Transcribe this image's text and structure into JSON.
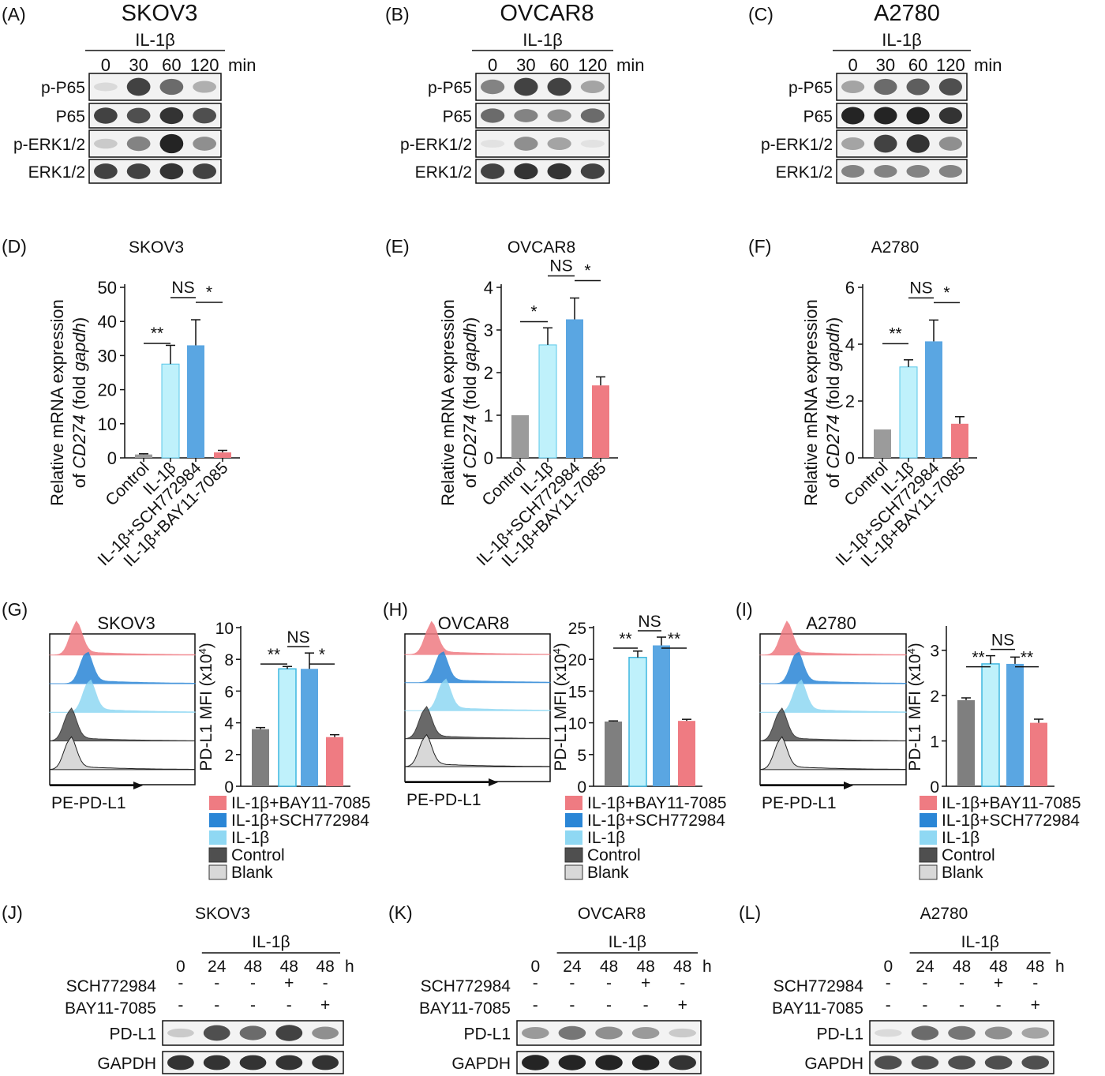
{
  "chart_data": {
    "type": "bar",
    "panel_letters": [
      "(A)",
      "(B)",
      "(C)",
      "(D)",
      "(E)",
      "(F)",
      "(G)",
      "(H)",
      "(I)",
      "(J)",
      "(K)",
      "(L)"
    ],
    "cell_lines": [
      "SKOV3",
      "OVCAR8",
      "A2780"
    ],
    "time_course_blots": {
      "treatment": "IL-1β",
      "timepoints": [
        "0",
        "30",
        "60",
        "120"
      ],
      "unit": "min",
      "rows": [
        "p-P65",
        "P65",
        "p-ERK1/2",
        "ERK1/2"
      ],
      "intensities": {
        "SKOV3": [
          [
            0.15,
            0.85,
            0.7,
            0.4
          ],
          [
            0.85,
            0.8,
            0.9,
            0.8
          ],
          [
            0.25,
            0.6,
            0.95,
            0.55
          ],
          [
            0.85,
            0.85,
            0.9,
            0.85
          ]
        ],
        "OVCAR8": [
          [
            0.6,
            0.85,
            0.85,
            0.45
          ],
          [
            0.7,
            0.6,
            0.55,
            0.7
          ],
          [
            0.1,
            0.55,
            0.45,
            0.1
          ],
          [
            0.85,
            0.9,
            0.9,
            0.85
          ]
        ],
        "A2780": [
          [
            0.45,
            0.7,
            0.75,
            0.8
          ],
          [
            0.95,
            0.95,
            0.95,
            0.9
          ],
          [
            0.45,
            0.85,
            0.9,
            0.55
          ],
          [
            0.6,
            0.6,
            0.6,
            0.6
          ]
        ]
      }
    },
    "mrna_charts": {
      "ylabel_line1": "Relative mRNA expression",
      "ylabel_line2_prefix": "of ",
      "ylabel_line2_gene": "CD274",
      "ylabel_line2_mid": " (fold ",
      "ylabel_line2_ref": "gapdh",
      "ylabel_line2_end": ")",
      "categories": [
        "Control",
        "IL-1β",
        "IL-1β+SCH772984",
        "IL-1β+BAY11-7085"
      ],
      "colors": [
        "#9b9b9b",
        "#bff1fb",
        "#5aa6e2",
        "#ef7b82"
      ],
      "panels": [
        {
          "title": "SKOV3",
          "ylim": [
            0,
            50
          ],
          "yticks": [
            0,
            10,
            20,
            30,
            40,
            50
          ],
          "values": [
            1,
            27.5,
            33,
            1.6
          ],
          "errors": [
            0.2,
            5.5,
            7.5,
            0.6
          ],
          "sig": [
            "**",
            "NS",
            "*"
          ]
        },
        {
          "title": "OVCAR8",
          "ylim": [
            0,
            4
          ],
          "yticks": [
            0,
            1,
            2,
            3,
            4
          ],
          "values": [
            1,
            2.65,
            3.25,
            1.7
          ],
          "errors": [
            0,
            0.4,
            0.5,
            0.2
          ],
          "sig": [
            "*",
            "NS",
            "*"
          ]
        },
        {
          "title": "A2780",
          "ylim": [
            0,
            6
          ],
          "yticks": [
            0,
            2,
            4,
            6
          ],
          "values": [
            1,
            3.2,
            4.1,
            1.2
          ],
          "errors": [
            0,
            0.25,
            0.75,
            0.25
          ],
          "sig": [
            "**",
            "NS",
            "*"
          ]
        }
      ]
    },
    "flow_charts": {
      "xlabel": "PE-PD-L1",
      "ylabel_prefix": "PD-L1 MFI (x10",
      "ylabel_exp": "4",
      "ylabel_suffix": ")",
      "order": [
        "Control",
        "IL-1β",
        "IL-1β+SCH772984",
        "IL-1β+BAY11-7085"
      ],
      "colors": [
        "#7f7f7f",
        "#bff1fb",
        "#5aa6e2",
        "#ef7b82"
      ],
      "legend": [
        {
          "label": "IL-1β+BAY11-7085",
          "color": "#ef7b82"
        },
        {
          "label": "IL-1β+SCH772984",
          "color": "#2a86d6"
        },
        {
          "label": "IL-1β",
          "color": "#8fd8f3"
        },
        {
          "label": "Control",
          "color": "#4f4f4f"
        },
        {
          "label": "Blank",
          "color": "#d8d8d8"
        }
      ],
      "panels": [
        {
          "title": "SKOV3",
          "ylim": [
            0,
            10
          ],
          "yticks": [
            0,
            2,
            4,
            6,
            8,
            10
          ],
          "values": [
            3.6,
            7.4,
            7.4,
            3.1
          ],
          "errors": [
            0.1,
            0.15,
            1.0,
            0.15
          ],
          "sig": [
            "**",
            "NS",
            "*"
          ]
        },
        {
          "title": "OVCAR8",
          "ylim": [
            0,
            25
          ],
          "yticks": [
            0,
            5,
            10,
            15,
            20,
            25
          ],
          "values": [
            10.2,
            20.3,
            22.2,
            10.3
          ],
          "errors": [
            0.1,
            1.0,
            1.3,
            0.25
          ],
          "sig": [
            "**",
            "NS",
            "**"
          ]
        },
        {
          "title": "A2780",
          "ylim": [
            0,
            3.5
          ],
          "yticks": [
            0,
            1,
            2,
            3
          ],
          "values": [
            1.9,
            2.7,
            2.7,
            1.4
          ],
          "errors": [
            0.05,
            0.18,
            0.15,
            0.08
          ],
          "sig": [
            "**",
            "NS",
            "**"
          ]
        }
      ]
    },
    "pdl1_blots": {
      "treatment": "IL-1β",
      "timepoints": [
        "0",
        "24",
        "48",
        "48",
        "48"
      ],
      "unit": "h",
      "inhibitor_rows": [
        {
          "label": "SCH772984",
          "marks": [
            "-",
            "-",
            "-",
            "+",
            "-"
          ]
        },
        {
          "label": "BAY11-7085",
          "marks": [
            "-",
            "-",
            "-",
            "-",
            "+"
          ]
        }
      ],
      "rows": [
        "PD-L1",
        "GAPDH"
      ],
      "intensities": {
        "SKOV3": [
          [
            0.25,
            0.8,
            0.7,
            0.85,
            0.55
          ],
          [
            0.9,
            0.9,
            0.9,
            0.9,
            0.9
          ]
        ],
        "OVCAR8": [
          [
            0.5,
            0.65,
            0.55,
            0.5,
            0.25
          ],
          [
            0.95,
            0.95,
            0.95,
            0.95,
            0.9
          ]
        ],
        "A2780": [
          [
            0.15,
            0.7,
            0.65,
            0.55,
            0.45
          ],
          [
            0.8,
            0.8,
            0.8,
            0.8,
            0.8
          ]
        ]
      }
    }
  }
}
